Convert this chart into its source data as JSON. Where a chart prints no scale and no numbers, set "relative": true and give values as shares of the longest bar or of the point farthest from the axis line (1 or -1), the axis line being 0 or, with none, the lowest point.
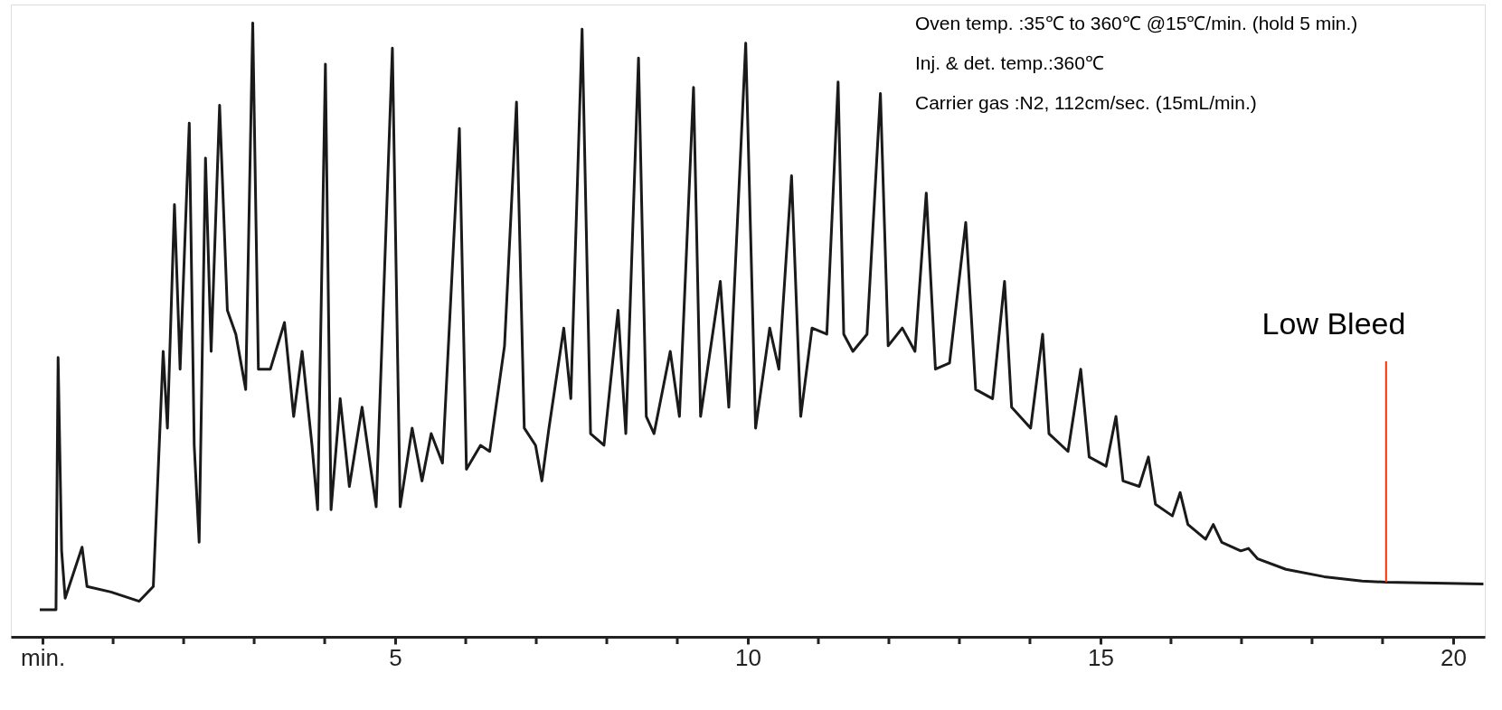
{
  "chart_data": {
    "type": "line",
    "relative": true,
    "grid": false,
    "xlim": [
      -0.45,
      20.45
    ],
    "xticks": [
      {
        "value": 0,
        "label": "min."
      },
      {
        "value": 1,
        "label": null
      },
      {
        "value": 2,
        "label": null
      },
      {
        "value": 3,
        "label": null
      },
      {
        "value": 4,
        "label": null
      },
      5,
      {
        "value": 6,
        "label": null
      },
      {
        "value": 7,
        "label": null
      },
      {
        "value": 8,
        "label": null
      },
      {
        "value": 9,
        "label": null
      },
      10,
      {
        "value": 11,
        "label": null
      },
      {
        "value": 12,
        "label": null
      },
      {
        "value": 13,
        "label": null
      },
      {
        "value": 14,
        "label": null
      },
      15,
      {
        "value": 16,
        "label": null
      },
      {
        "value": 17,
        "label": null
      },
      {
        "value": 18,
        "label": null
      },
      {
        "value": 19,
        "label": null
      },
      20
    ],
    "annotations": [
      "Oven temp.   :35℃ to 360℃ @15℃/min. (hold 5 min.)",
      "Inj. & det. temp.:360℃",
      "Carrier gas    :N2, 112cm/sec. (15mL/min.)",
      {
        "text": "Low Bleed",
        "x": 19.05,
        "y": 0.089
      }
    ],
    "series": [
      {
        "color": "#1a1a1a",
        "x": [
          -0.04,
          0.19,
          0.22,
          0.27,
          0.32,
          0.56,
          0.63,
          0.97,
          1.37,
          1.57,
          1.71,
          1.77,
          1.87,
          1.95,
          2.08,
          2.15,
          2.22,
          2.31,
          2.39,
          2.51,
          2.62,
          2.74,
          2.88,
          2.98,
          3.06,
          3.23,
          3.43,
          3.56,
          3.68,
          3.82,
          3.9,
          4.01,
          4.09,
          4.22,
          4.35,
          4.53,
          4.73,
          4.96,
          5.07,
          5.24,
          5.38,
          5.51,
          5.67,
          5.91,
          6.01,
          6.21,
          6.34,
          6.55,
          6.72,
          6.83,
          6.99,
          7.08,
          7.18,
          7.39,
          7.49,
          7.65,
          7.77,
          7.96,
          8.16,
          8.27,
          8.45,
          8.56,
          8.67,
          8.9,
          9.03,
          9.23,
          9.33,
          9.61,
          9.73,
          9.97,
          10.11,
          10.31,
          10.44,
          10.62,
          10.75,
          10.91,
          11.12,
          11.28,
          11.36,
          11.49,
          11.69,
          11.88,
          11.99,
          12.19,
          12.37,
          12.53,
          12.66,
          12.86,
          13.09,
          13.23,
          13.47,
          13.64,
          13.74,
          14.01,
          14.18,
          14.27,
          14.54,
          14.72,
          14.84,
          15.08,
          15.22,
          15.32,
          15.55,
          15.68,
          15.78,
          16.02,
          16.13,
          16.24,
          16.49,
          16.6,
          16.72,
          16.99,
          17.1,
          17.23,
          17.63,
          18.17,
          18.71,
          19.05,
          20.43
        ],
        "values": [
          0.044,
          0.044,
          0.455,
          0.14,
          0.063,
          0.146,
          0.082,
          0.073,
          0.058,
          0.082,
          0.465,
          0.34,
          0.704,
          0.436,
          0.837,
          0.312,
          0.154,
          0.78,
          0.465,
          0.866,
          0.532,
          0.493,
          0.403,
          1.0,
          0.436,
          0.436,
          0.512,
          0.359,
          0.465,
          0.312,
          0.207,
          0.933,
          0.207,
          0.388,
          0.245,
          0.374,
          0.212,
          0.959,
          0.212,
          0.34,
          0.254,
          0.331,
          0.283,
          0.828,
          0.273,
          0.312,
          0.302,
          0.474,
          0.871,
          0.34,
          0.312,
          0.254,
          0.34,
          0.503,
          0.388,
          0.99,
          0.331,
          0.312,
          0.532,
          0.331,
          0.943,
          0.359,
          0.331,
          0.465,
          0.359,
          0.895,
          0.359,
          0.579,
          0.374,
          0.967,
          0.34,
          0.503,
          0.436,
          0.751,
          0.359,
          0.503,
          0.493,
          0.904,
          0.493,
          0.465,
          0.493,
          0.885,
          0.474,
          0.503,
          0.465,
          0.723,
          0.436,
          0.446,
          0.675,
          0.403,
          0.388,
          0.579,
          0.374,
          0.34,
          0.493,
          0.331,
          0.302,
          0.436,
          0.293,
          0.278,
          0.359,
          0.254,
          0.245,
          0.293,
          0.216,
          0.197,
          0.235,
          0.183,
          0.159,
          0.183,
          0.154,
          0.14,
          0.144,
          0.127,
          0.11,
          0.098,
          0.091,
          0.089,
          0.086
        ]
      }
    ]
  }
}
